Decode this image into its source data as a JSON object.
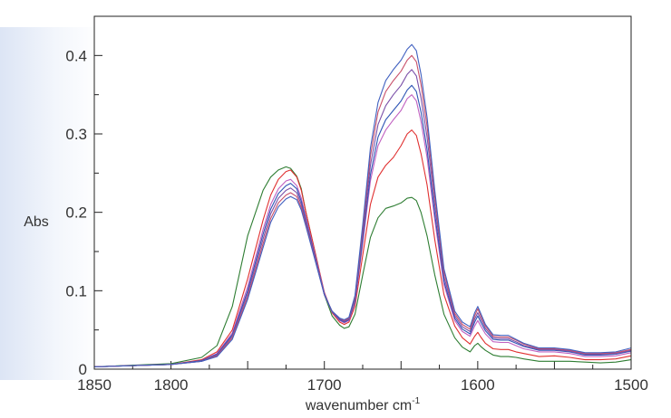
{
  "chart_data": {
    "type": "line",
    "title": "",
    "xlabel": "wavenumber cm",
    "xlabel_superscript": "-1",
    "ylabel": "Abs",
    "xlim": [
      1850,
      1500
    ],
    "ylim": [
      0,
      0.45
    ],
    "x_ticks": [
      1850,
      1800,
      1700,
      1600,
      1500
    ],
    "y_ticks": [
      0,
      0.1,
      0.2,
      0.3,
      0.4
    ],
    "y_tick_labels": [
      "0",
      "0.1",
      "0.2",
      "0.3",
      "0.4"
    ],
    "grid": false,
    "legend": "none",
    "colors": [
      "#2e7d32",
      "#e03030",
      "#c060c0",
      "#2f55b5",
      "#7a4fa8",
      "#c8506a",
      "#4060c0"
    ],
    "series": [
      {
        "x": [
          1850,
          1800,
          1780,
          1770,
          1760,
          1750,
          1740,
          1735,
          1730,
          1725,
          1722,
          1718,
          1715,
          1712,
          1705,
          1700,
          1695,
          1690,
          1687,
          1684,
          1680,
          1675,
          1670,
          1665,
          1660,
          1655,
          1650,
          1646,
          1643,
          1640,
          1637,
          1633,
          1628,
          1622,
          1615,
          1610,
          1605,
          1602,
          1600,
          1598,
          1595,
          1590,
          1585,
          1580,
          1575,
          1570,
          1560,
          1550,
          1540,
          1530,
          1520,
          1510,
          1500
        ],
        "y": [
          0.003,
          0.007,
          0.015,
          0.03,
          0.08,
          0.17,
          0.228,
          0.245,
          0.254,
          0.258,
          0.256,
          0.246,
          0.23,
          0.2,
          0.14,
          0.095,
          0.068,
          0.056,
          0.052,
          0.054,
          0.07,
          0.12,
          0.168,
          0.193,
          0.205,
          0.208,
          0.212,
          0.218,
          0.219,
          0.215,
          0.2,
          0.17,
          0.12,
          0.07,
          0.04,
          0.028,
          0.022,
          0.03,
          0.033,
          0.029,
          0.024,
          0.018,
          0.016,
          0.016,
          0.015,
          0.013,
          0.01,
          0.01,
          0.01,
          0.009,
          0.008,
          0.009,
          0.012
        ]
      },
      {
        "x": [
          1850,
          1800,
          1780,
          1770,
          1760,
          1750,
          1740,
          1735,
          1730,
          1725,
          1722,
          1718,
          1715,
          1712,
          1705,
          1700,
          1695,
          1690,
          1687,
          1684,
          1680,
          1675,
          1670,
          1665,
          1660,
          1655,
          1650,
          1646,
          1643,
          1640,
          1637,
          1633,
          1628,
          1622,
          1615,
          1610,
          1605,
          1602,
          1600,
          1598,
          1595,
          1590,
          1585,
          1580,
          1575,
          1570,
          1560,
          1550,
          1540,
          1530,
          1520,
          1510,
          1500
        ],
        "y": [
          0.003,
          0.006,
          0.012,
          0.022,
          0.05,
          0.115,
          0.19,
          0.222,
          0.242,
          0.252,
          0.254,
          0.245,
          0.228,
          0.2,
          0.14,
          0.098,
          0.072,
          0.06,
          0.057,
          0.06,
          0.08,
          0.145,
          0.21,
          0.245,
          0.26,
          0.27,
          0.285,
          0.3,
          0.305,
          0.298,
          0.275,
          0.235,
          0.165,
          0.095,
          0.055,
          0.04,
          0.032,
          0.042,
          0.047,
          0.041,
          0.033,
          0.026,
          0.025,
          0.025,
          0.022,
          0.02,
          0.016,
          0.017,
          0.015,
          0.012,
          0.012,
          0.013,
          0.017
        ]
      },
      {
        "x": [
          1850,
          1800,
          1780,
          1770,
          1760,
          1750,
          1740,
          1735,
          1730,
          1725,
          1722,
          1718,
          1715,
          1712,
          1705,
          1700,
          1695,
          1690,
          1687,
          1684,
          1680,
          1675,
          1670,
          1665,
          1660,
          1655,
          1650,
          1646,
          1643,
          1640,
          1637,
          1633,
          1628,
          1622,
          1615,
          1610,
          1605,
          1602,
          1600,
          1598,
          1595,
          1590,
          1585,
          1580,
          1575,
          1570,
          1560,
          1550,
          1540,
          1530,
          1520,
          1510,
          1500
        ],
        "y": [
          0.003,
          0.006,
          0.011,
          0.02,
          0.046,
          0.105,
          0.178,
          0.21,
          0.23,
          0.24,
          0.242,
          0.234,
          0.218,
          0.193,
          0.137,
          0.097,
          0.073,
          0.062,
          0.059,
          0.062,
          0.085,
          0.16,
          0.24,
          0.285,
          0.305,
          0.318,
          0.33,
          0.345,
          0.35,
          0.342,
          0.316,
          0.27,
          0.19,
          0.108,
          0.062,
          0.048,
          0.042,
          0.055,
          0.062,
          0.055,
          0.045,
          0.035,
          0.034,
          0.034,
          0.03,
          0.026,
          0.022,
          0.022,
          0.02,
          0.016,
          0.016,
          0.017,
          0.021
        ]
      },
      {
        "x": [
          1850,
          1800,
          1780,
          1770,
          1760,
          1750,
          1740,
          1735,
          1730,
          1725,
          1722,
          1718,
          1715,
          1712,
          1705,
          1700,
          1695,
          1690,
          1687,
          1684,
          1680,
          1675,
          1670,
          1665,
          1660,
          1655,
          1650,
          1646,
          1643,
          1640,
          1637,
          1633,
          1628,
          1622,
          1615,
          1610,
          1605,
          1602,
          1600,
          1598,
          1595,
          1590,
          1585,
          1580,
          1575,
          1570,
          1560,
          1550,
          1540,
          1530,
          1520,
          1510,
          1500
        ],
        "y": [
          0.003,
          0.006,
          0.011,
          0.019,
          0.044,
          0.1,
          0.172,
          0.204,
          0.224,
          0.234,
          0.237,
          0.23,
          0.214,
          0.19,
          0.135,
          0.096,
          0.073,
          0.063,
          0.06,
          0.063,
          0.087,
          0.165,
          0.248,
          0.296,
          0.318,
          0.33,
          0.342,
          0.356,
          0.362,
          0.354,
          0.328,
          0.28,
          0.198,
          0.112,
          0.065,
          0.051,
          0.045,
          0.06,
          0.068,
          0.06,
          0.049,
          0.038,
          0.037,
          0.037,
          0.033,
          0.029,
          0.024,
          0.024,
          0.022,
          0.018,
          0.018,
          0.019,
          0.023
        ]
      },
      {
        "x": [
          1850,
          1800,
          1780,
          1770,
          1760,
          1750,
          1740,
          1735,
          1730,
          1725,
          1722,
          1718,
          1715,
          1712,
          1705,
          1700,
          1695,
          1690,
          1687,
          1684,
          1680,
          1675,
          1670,
          1665,
          1660,
          1655,
          1650,
          1646,
          1643,
          1640,
          1637,
          1633,
          1628,
          1622,
          1615,
          1610,
          1605,
          1602,
          1600,
          1598,
          1595,
          1590,
          1585,
          1580,
          1575,
          1570,
          1560,
          1550,
          1540,
          1530,
          1520,
          1510,
          1500
        ],
        "y": [
          0.003,
          0.006,
          0.01,
          0.018,
          0.042,
          0.096,
          0.166,
          0.198,
          0.218,
          0.228,
          0.231,
          0.225,
          0.21,
          0.187,
          0.133,
          0.095,
          0.073,
          0.064,
          0.061,
          0.064,
          0.09,
          0.172,
          0.26,
          0.312,
          0.336,
          0.35,
          0.362,
          0.376,
          0.382,
          0.374,
          0.346,
          0.296,
          0.21,
          0.118,
          0.068,
          0.054,
          0.048,
          0.064,
          0.072,
          0.064,
          0.052,
          0.04,
          0.039,
          0.039,
          0.035,
          0.03,
          0.025,
          0.025,
          0.023,
          0.019,
          0.019,
          0.02,
          0.024
        ]
      },
      {
        "x": [
          1850,
          1800,
          1780,
          1770,
          1760,
          1750,
          1740,
          1735,
          1730,
          1725,
          1722,
          1718,
          1715,
          1712,
          1705,
          1700,
          1695,
          1690,
          1687,
          1684,
          1680,
          1675,
          1670,
          1665,
          1660,
          1655,
          1650,
          1646,
          1643,
          1640,
          1637,
          1633,
          1628,
          1622,
          1615,
          1610,
          1605,
          1602,
          1600,
          1598,
          1595,
          1590,
          1585,
          1580,
          1575,
          1570,
          1560,
          1550,
          1540,
          1530,
          1520,
          1510,
          1500
        ],
        "y": [
          0.003,
          0.006,
          0.01,
          0.017,
          0.04,
          0.092,
          0.16,
          0.192,
          0.212,
          0.222,
          0.225,
          0.22,
          0.206,
          0.184,
          0.132,
          0.095,
          0.074,
          0.065,
          0.062,
          0.065,
          0.092,
          0.178,
          0.272,
          0.328,
          0.354,
          0.368,
          0.38,
          0.394,
          0.4,
          0.392,
          0.363,
          0.31,
          0.22,
          0.124,
          0.071,
          0.057,
          0.051,
          0.068,
          0.077,
          0.068,
          0.055,
          0.042,
          0.041,
          0.041,
          0.037,
          0.032,
          0.026,
          0.026,
          0.024,
          0.02,
          0.02,
          0.021,
          0.025
        ]
      },
      {
        "x": [
          1850,
          1800,
          1780,
          1770,
          1760,
          1750,
          1740,
          1735,
          1730,
          1725,
          1722,
          1718,
          1715,
          1712,
          1705,
          1700,
          1695,
          1690,
          1687,
          1684,
          1680,
          1675,
          1670,
          1665,
          1660,
          1655,
          1650,
          1646,
          1643,
          1640,
          1637,
          1633,
          1628,
          1622,
          1615,
          1610,
          1605,
          1602,
          1600,
          1598,
          1595,
          1590,
          1585,
          1580,
          1575,
          1570,
          1560,
          1550,
          1540,
          1530,
          1520,
          1510,
          1500
        ],
        "y": [
          0.003,
          0.006,
          0.01,
          0.016,
          0.038,
          0.089,
          0.155,
          0.187,
          0.207,
          0.217,
          0.22,
          0.216,
          0.203,
          0.182,
          0.131,
          0.095,
          0.074,
          0.065,
          0.063,
          0.066,
          0.094,
          0.184,
          0.282,
          0.34,
          0.368,
          0.382,
          0.394,
          0.408,
          0.414,
          0.406,
          0.376,
          0.321,
          0.228,
          0.128,
          0.074,
          0.06,
          0.054,
          0.072,
          0.08,
          0.071,
          0.057,
          0.044,
          0.043,
          0.043,
          0.038,
          0.033,
          0.027,
          0.027,
          0.025,
          0.021,
          0.021,
          0.022,
          0.027
        ]
      }
    ]
  }
}
